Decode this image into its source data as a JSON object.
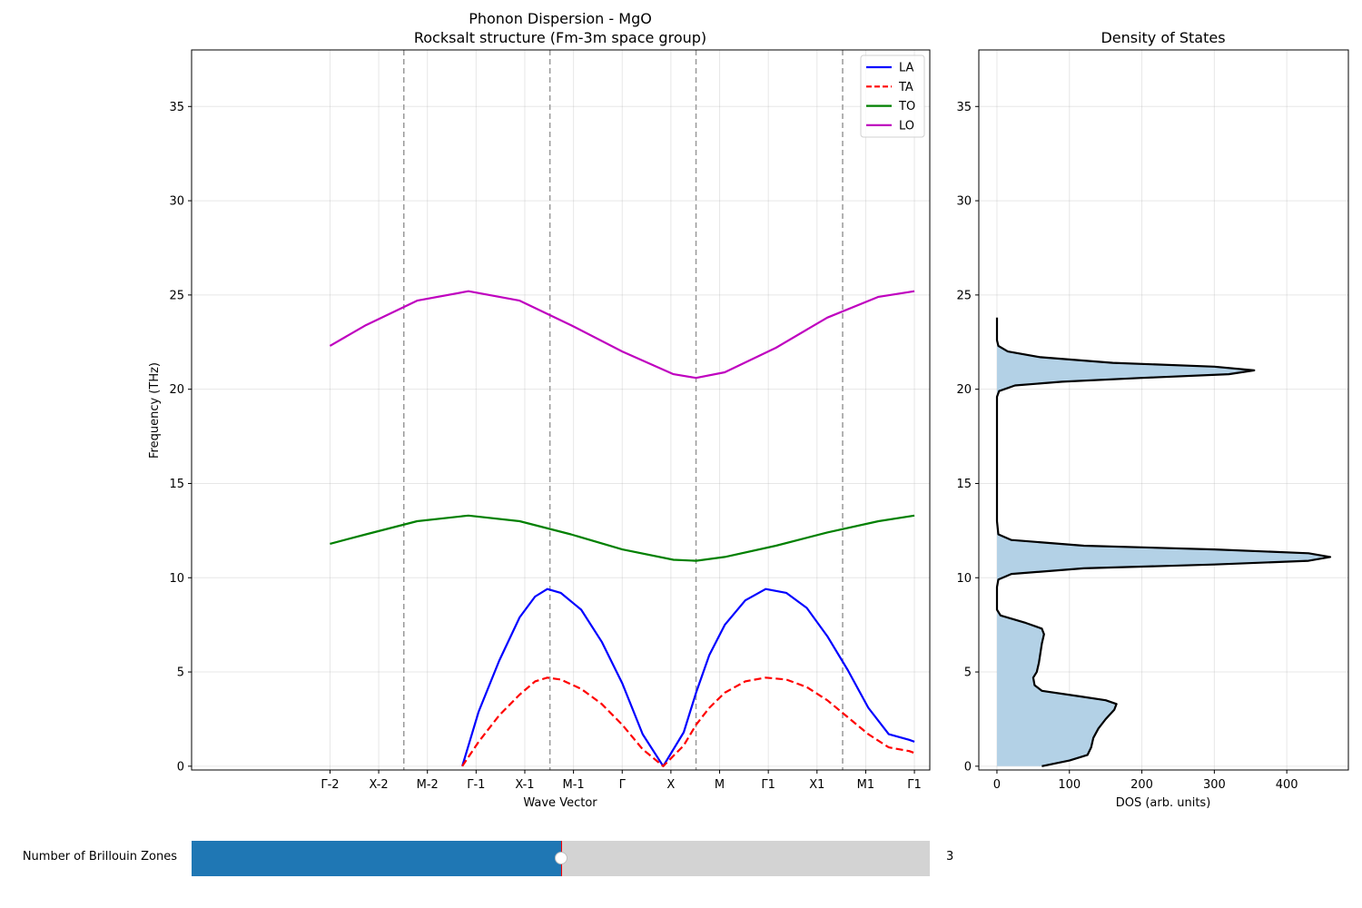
{
  "slider": {
    "label": "Number of Brillouin Zones",
    "value": 3,
    "value_text": "3",
    "min": 1,
    "max": 5,
    "init_value": 3,
    "fill_color": "#1f77b4",
    "track_color": "#d3d3d3",
    "marker_color": "#ff0000"
  },
  "chart_data": [
    {
      "type": "line",
      "title": "Phonon Dispersion - MgO",
      "subtitle": "Rocksalt structure (Fm-3m space group)",
      "xlabel": "Wave Vector",
      "ylabel": "Frequency (THz)",
      "xlim": [
        -4.2,
        3.0
      ],
      "ylim": [
        -0.2,
        38
      ],
      "yticks": [
        0,
        5,
        10,
        15,
        20,
        25,
        30,
        35
      ],
      "xtick_positions": [
        -2.85,
        -2.375,
        -1.9,
        -1.425,
        -0.95,
        -0.475,
        0.0,
        0.475,
        0.95,
        1.425,
        1.9,
        2.375,
        2.85
      ],
      "xtick_labels": [
        "Γ-2",
        "X-2",
        "M-2",
        "Γ-1",
        "X-1",
        "M-1",
        "Γ",
        "X",
        "M",
        "Γ1",
        "X1",
        "M1",
        "Γ1"
      ],
      "zone_boundaries": [
        -2.13,
        -0.705,
        0.72,
        2.15
      ],
      "grid": true,
      "legend_position": "top-right",
      "series": [
        {
          "name": "LA",
          "color": "#0000ff",
          "dash": "solid",
          "x": [
            -1.56,
            -1.4,
            -1.2,
            -1.0,
            -0.85,
            -0.73,
            -0.6,
            -0.4,
            -0.2,
            0.0,
            0.2,
            0.4,
            0.6,
            0.72,
            0.85,
            1.0,
            1.2,
            1.4,
            1.6,
            1.8,
            2.0,
            2.2,
            2.4,
            2.6,
            2.8,
            2.85
          ],
          "y": [
            0.0,
            2.9,
            5.6,
            7.9,
            9.0,
            9.4,
            9.2,
            8.3,
            6.6,
            4.4,
            1.7,
            0.0,
            1.8,
            3.9,
            5.9,
            7.5,
            8.8,
            9.4,
            9.2,
            8.4,
            6.9,
            5.1,
            3.1,
            1.7,
            1.4,
            1.3
          ]
        },
        {
          "name": "TA",
          "color": "#ff0000",
          "dash": "dashed",
          "x": [
            -1.56,
            -1.4,
            -1.2,
            -1.0,
            -0.85,
            -0.73,
            -0.6,
            -0.4,
            -0.2,
            0.0,
            0.2,
            0.4,
            0.6,
            0.72,
            0.85,
            1.0,
            1.2,
            1.4,
            1.6,
            1.8,
            2.0,
            2.2,
            2.4,
            2.6,
            2.8,
            2.85
          ],
          "y": [
            0.0,
            1.3,
            2.7,
            3.8,
            4.5,
            4.7,
            4.6,
            4.1,
            3.3,
            2.2,
            0.9,
            0.0,
            1.1,
            2.2,
            3.1,
            3.9,
            4.5,
            4.7,
            4.6,
            4.2,
            3.5,
            2.6,
            1.7,
            1.0,
            0.8,
            0.7
          ]
        },
        {
          "name": "TO",
          "color": "#008000",
          "dash": "solid",
          "x": [
            -2.85,
            -2.5,
            -2.0,
            -1.5,
            -1.0,
            -0.5,
            0.0,
            0.5,
            0.72,
            1.0,
            1.5,
            2.0,
            2.5,
            2.85
          ],
          "y": [
            11.8,
            12.3,
            13.0,
            13.3,
            13.0,
            12.3,
            11.5,
            10.95,
            10.9,
            11.1,
            11.7,
            12.4,
            13.0,
            13.3
          ]
        },
        {
          "name": "LO",
          "color": "#bf00bf",
          "dash": "solid",
          "x": [
            -2.85,
            -2.5,
            -2.0,
            -1.5,
            -1.0,
            -0.5,
            0.0,
            0.5,
            0.72,
            1.0,
            1.5,
            2.0,
            2.5,
            2.85
          ],
          "y": [
            22.3,
            23.4,
            24.7,
            25.2,
            24.7,
            23.4,
            22.0,
            20.8,
            20.6,
            20.9,
            22.2,
            23.8,
            24.9,
            25.2
          ]
        }
      ]
    },
    {
      "type": "area",
      "title": "Density of States",
      "xlabel": "DOS (arb. units)",
      "ylabel": "",
      "xlim": [
        -25,
        485
      ],
      "ylim": [
        -0.2,
        38
      ],
      "xticks": [
        0,
        100,
        200,
        300,
        400
      ],
      "yticks": [
        0,
        5,
        10,
        15,
        20,
        25,
        30,
        35
      ],
      "grid": true,
      "fill_color": "#b3d1e6",
      "line_color": "#000000",
      "series": [
        {
          "name": "",
          "frequency": [
            0.0,
            0.3,
            0.6,
            1.0,
            1.5,
            2.0,
            2.5,
            3.0,
            3.3,
            3.5,
            3.7,
            4.0,
            4.3,
            4.7,
            5.0,
            5.5,
            6.0,
            6.5,
            7.0,
            7.3,
            7.6,
            8.0,
            8.3,
            8.6,
            9.0,
            9.5,
            9.9,
            10.2,
            10.5,
            10.7,
            10.9,
            11.1,
            11.3,
            11.5,
            11.7,
            12.0,
            12.3,
            13.0,
            15.0,
            17.0,
            19.0,
            19.6,
            19.9,
            20.2,
            20.4,
            20.6,
            20.8,
            21.0,
            21.2,
            21.4,
            21.7,
            22.0,
            22.3,
            22.6,
            23.0,
            23.8
          ],
          "dos": [
            62,
            100,
            125,
            130,
            133,
            140,
            150,
            162,
            165,
            150,
            115,
            62,
            52,
            50,
            55,
            58,
            60,
            62,
            65,
            62,
            40,
            5,
            0,
            0,
            0,
            0,
            2,
            20,
            120,
            300,
            430,
            460,
            430,
            300,
            120,
            20,
            2,
            0,
            0,
            0,
            0,
            0,
            3,
            25,
            90,
            200,
            320,
            355,
            300,
            160,
            60,
            15,
            2,
            0,
            0,
            0
          ]
        }
      ]
    }
  ]
}
